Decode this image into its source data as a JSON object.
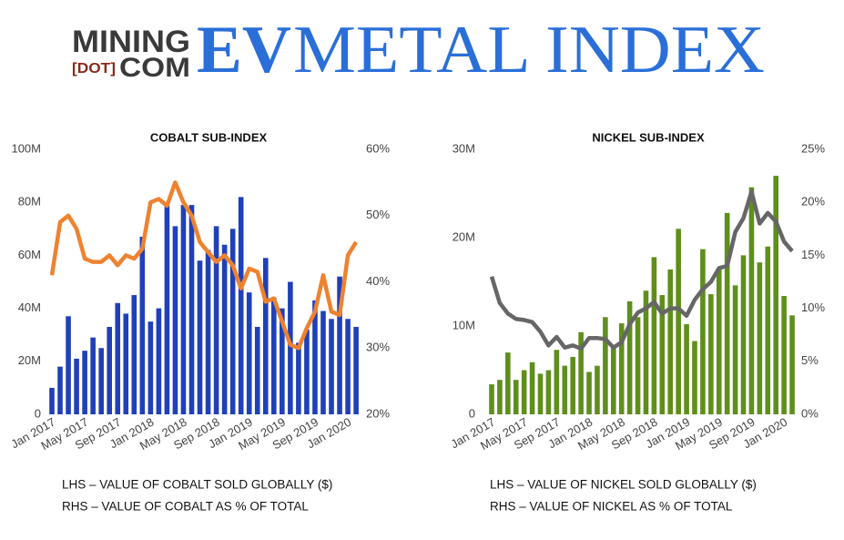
{
  "header": {
    "brand_line1": "MINING",
    "brand_dot": "[DOT]",
    "brand_line2": "COM",
    "title_ev": "EV",
    "title_rest": "METAL INDEX"
  },
  "chart_data": [
    {
      "type": "bar-line",
      "title": "COBALT SUB-INDEX",
      "categories": [
        "Jan 2017",
        null,
        null,
        null,
        "May 2017",
        null,
        null,
        null,
        "Sep 2017",
        null,
        null,
        null,
        "Jan 2018",
        null,
        null,
        null,
        "May 2018",
        null,
        null,
        null,
        "Sep 2018",
        null,
        null,
        null,
        "Jan 2019",
        null,
        null,
        null,
        "May 2019",
        null,
        null,
        null,
        "Sep 2019",
        null,
        null,
        null,
        "Jan 2020",
        null
      ],
      "series": [
        {
          "type": "bar",
          "color": "#1f40b8",
          "values": [
            10,
            18,
            37,
            21,
            24,
            29,
            25,
            33,
            42,
            38,
            45,
            67,
            35,
            40,
            79,
            71,
            79,
            79,
            58,
            62,
            71,
            64,
            70,
            82,
            46,
            33,
            59,
            44,
            40,
            50,
            27,
            32,
            43,
            39,
            36,
            52,
            36,
            33
          ]
        },
        {
          "type": "line",
          "axis": "y2",
          "color": "#ee8230",
          "values": [
            41,
            49,
            50,
            48,
            43.5,
            43,
            43,
            44,
            42.5,
            44,
            43.5,
            45,
            52,
            52.5,
            51.5,
            55,
            52,
            50,
            46,
            44.5,
            43,
            44,
            42.5,
            39,
            42,
            41.5,
            37,
            37.5,
            34,
            30.5,
            30,
            33,
            35.5,
            41,
            35.5,
            35,
            44,
            46
          ]
        }
      ],
      "ylim": [
        0,
        100
      ],
      "yticks": [
        0,
        {
          "value": 20,
          "label": "20M"
        },
        {
          "value": 40,
          "label": "40M"
        },
        {
          "value": 60,
          "label": "60M"
        },
        {
          "value": 80,
          "label": "80M"
        },
        {
          "value": 100,
          "label": "100M"
        }
      ],
      "y2lim": [
        20,
        60
      ],
      "y2ticks": [
        {
          "value": 20,
          "label": "20%"
        },
        {
          "value": 30,
          "label": "30%"
        },
        {
          "value": 40,
          "label": "40%"
        },
        {
          "value": 50,
          "label": "50%"
        },
        {
          "value": 60,
          "label": "60%"
        }
      ],
      "grid": false,
      "notes": [
        "LHS – VALUE OF COBALT SOLD GLOBALLY ($)",
        "RHS – VALUE OF COBALT AS % OF TOTAL"
      ]
    },
    {
      "type": "bar-line",
      "title": "NICKEL SUB-INDEX",
      "categories": [
        "Jan 2017",
        null,
        null,
        null,
        "May 2017",
        null,
        null,
        null,
        "Sep 2017",
        null,
        null,
        null,
        "Jan 2018",
        null,
        null,
        null,
        "May 2018",
        null,
        null,
        null,
        "Sep 2018",
        null,
        null,
        null,
        "Jan 2019",
        null,
        null,
        null,
        "May 2019",
        null,
        null,
        null,
        "Sep 2019",
        null,
        null,
        null,
        "Jan 2020",
        null
      ],
      "series": [
        {
          "type": "bar",
          "color": "#5e8f1b",
          "values": [
            3.4,
            3.9,
            7,
            3.9,
            5,
            5.9,
            4.6,
            5,
            7.3,
            5.5,
            6.5,
            9.3,
            4.8,
            5.5,
            11,
            7.5,
            10.3,
            12.8,
            11,
            14,
            17.8,
            13.5,
            16.4,
            21,
            10.2,
            8.3,
            18.7,
            13.6,
            16.5,
            22.8,
            14.6,
            18,
            25.7,
            17.2,
            19,
            27,
            13.4,
            11.2
          ]
        },
        {
          "type": "line",
          "axis": "y2",
          "color": "#666666",
          "values": [
            13,
            10.5,
            9.5,
            9,
            8.9,
            8.7,
            7.8,
            6.5,
            7.3,
            6.3,
            6.5,
            6.2,
            7.2,
            7.2,
            7.1,
            6.3,
            6.8,
            8.5,
            9.6,
            10,
            10.6,
            9.5,
            10,
            10,
            9.3,
            10.8,
            11.8,
            12.5,
            13.8,
            14,
            17.2,
            18.5,
            21,
            18,
            19,
            18.2,
            16.3,
            15.4
          ]
        }
      ],
      "ylim": [
        0,
        30
      ],
      "yticks": [
        0,
        {
          "value": 10,
          "label": "10M"
        },
        {
          "value": 20,
          "label": "20M"
        },
        {
          "value": 30,
          "label": "30M"
        }
      ],
      "y2lim": [
        0,
        25
      ],
      "y2ticks": [
        {
          "value": 0,
          "label": "0%"
        },
        {
          "value": 5,
          "label": "5%"
        },
        {
          "value": 10,
          "label": "10%"
        },
        {
          "value": 15,
          "label": "15%"
        },
        {
          "value": 20,
          "label": "20%"
        },
        {
          "value": 25,
          "label": "25%"
        }
      ],
      "grid": false,
      "notes": [
        "LHS – VALUE OF NICKEL SOLD GLOBALLY ($)",
        "RHS – VALUE OF NICKEL AS % OF TOTAL"
      ]
    }
  ]
}
